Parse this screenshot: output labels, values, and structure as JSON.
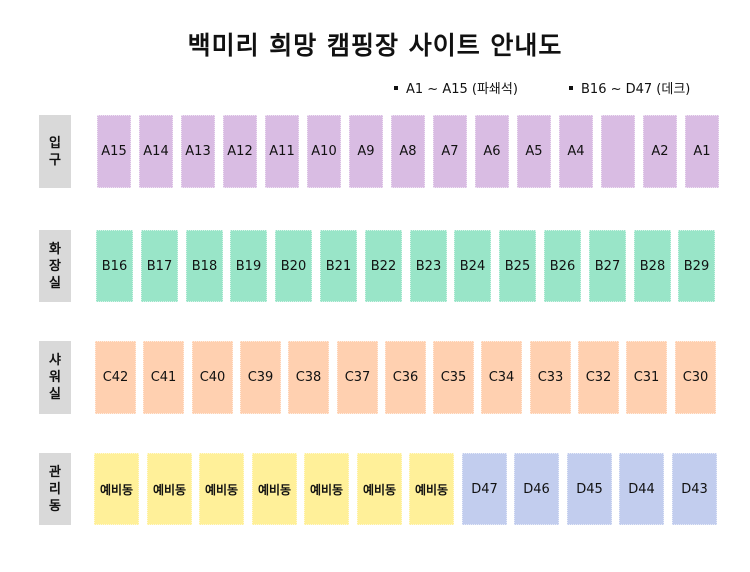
{
  "title": "백미리 희망 캠핑장 사이트 안내도",
  "legend": [
    {
      "label": "A1 ~ A15 (파쇄석)"
    },
    {
      "label": "B16 ~ D47 (데크)"
    }
  ],
  "colors": {
    "row_a": "#d9bce3",
    "row_b": "#99e5c8",
    "row_c": "#ffd0b0",
    "reserve": "#fff099",
    "row_d": "#c2cdee",
    "label_bg": "#d9d9d9"
  },
  "rows": [
    {
      "label_chars": [
        "입",
        "구"
      ],
      "sites": [
        "A15",
        "A14",
        "A13",
        "A12",
        "A11",
        "A10",
        "A9",
        "A8",
        "A7",
        "A6",
        "A5",
        "A4",
        "",
        "A2",
        "A1"
      ]
    },
    {
      "label_chars": [
        "화",
        "장",
        "실"
      ],
      "sites": [
        "B16",
        "B17",
        "B18",
        "B19",
        "B20",
        "B21",
        "B22",
        "B23",
        "B24",
        "B25",
        "B26",
        "B27",
        "B28",
        "B29"
      ]
    },
    {
      "label_chars": [
        "샤",
        "워",
        "실"
      ],
      "sites": [
        "C42",
        "C41",
        "C40",
        "C39",
        "C38",
        "C37",
        "C36",
        "C35",
        "C34",
        "C33",
        "C32",
        "C31",
        "C30"
      ]
    },
    {
      "label_chars": [
        "관",
        "리",
        "동"
      ],
      "sites": [
        "예비동",
        "예비동",
        "예비동",
        "예비동",
        "예비동",
        "예비동",
        "예비동",
        "D47",
        "D46",
        "D45",
        "D44",
        "D43"
      ]
    }
  ]
}
